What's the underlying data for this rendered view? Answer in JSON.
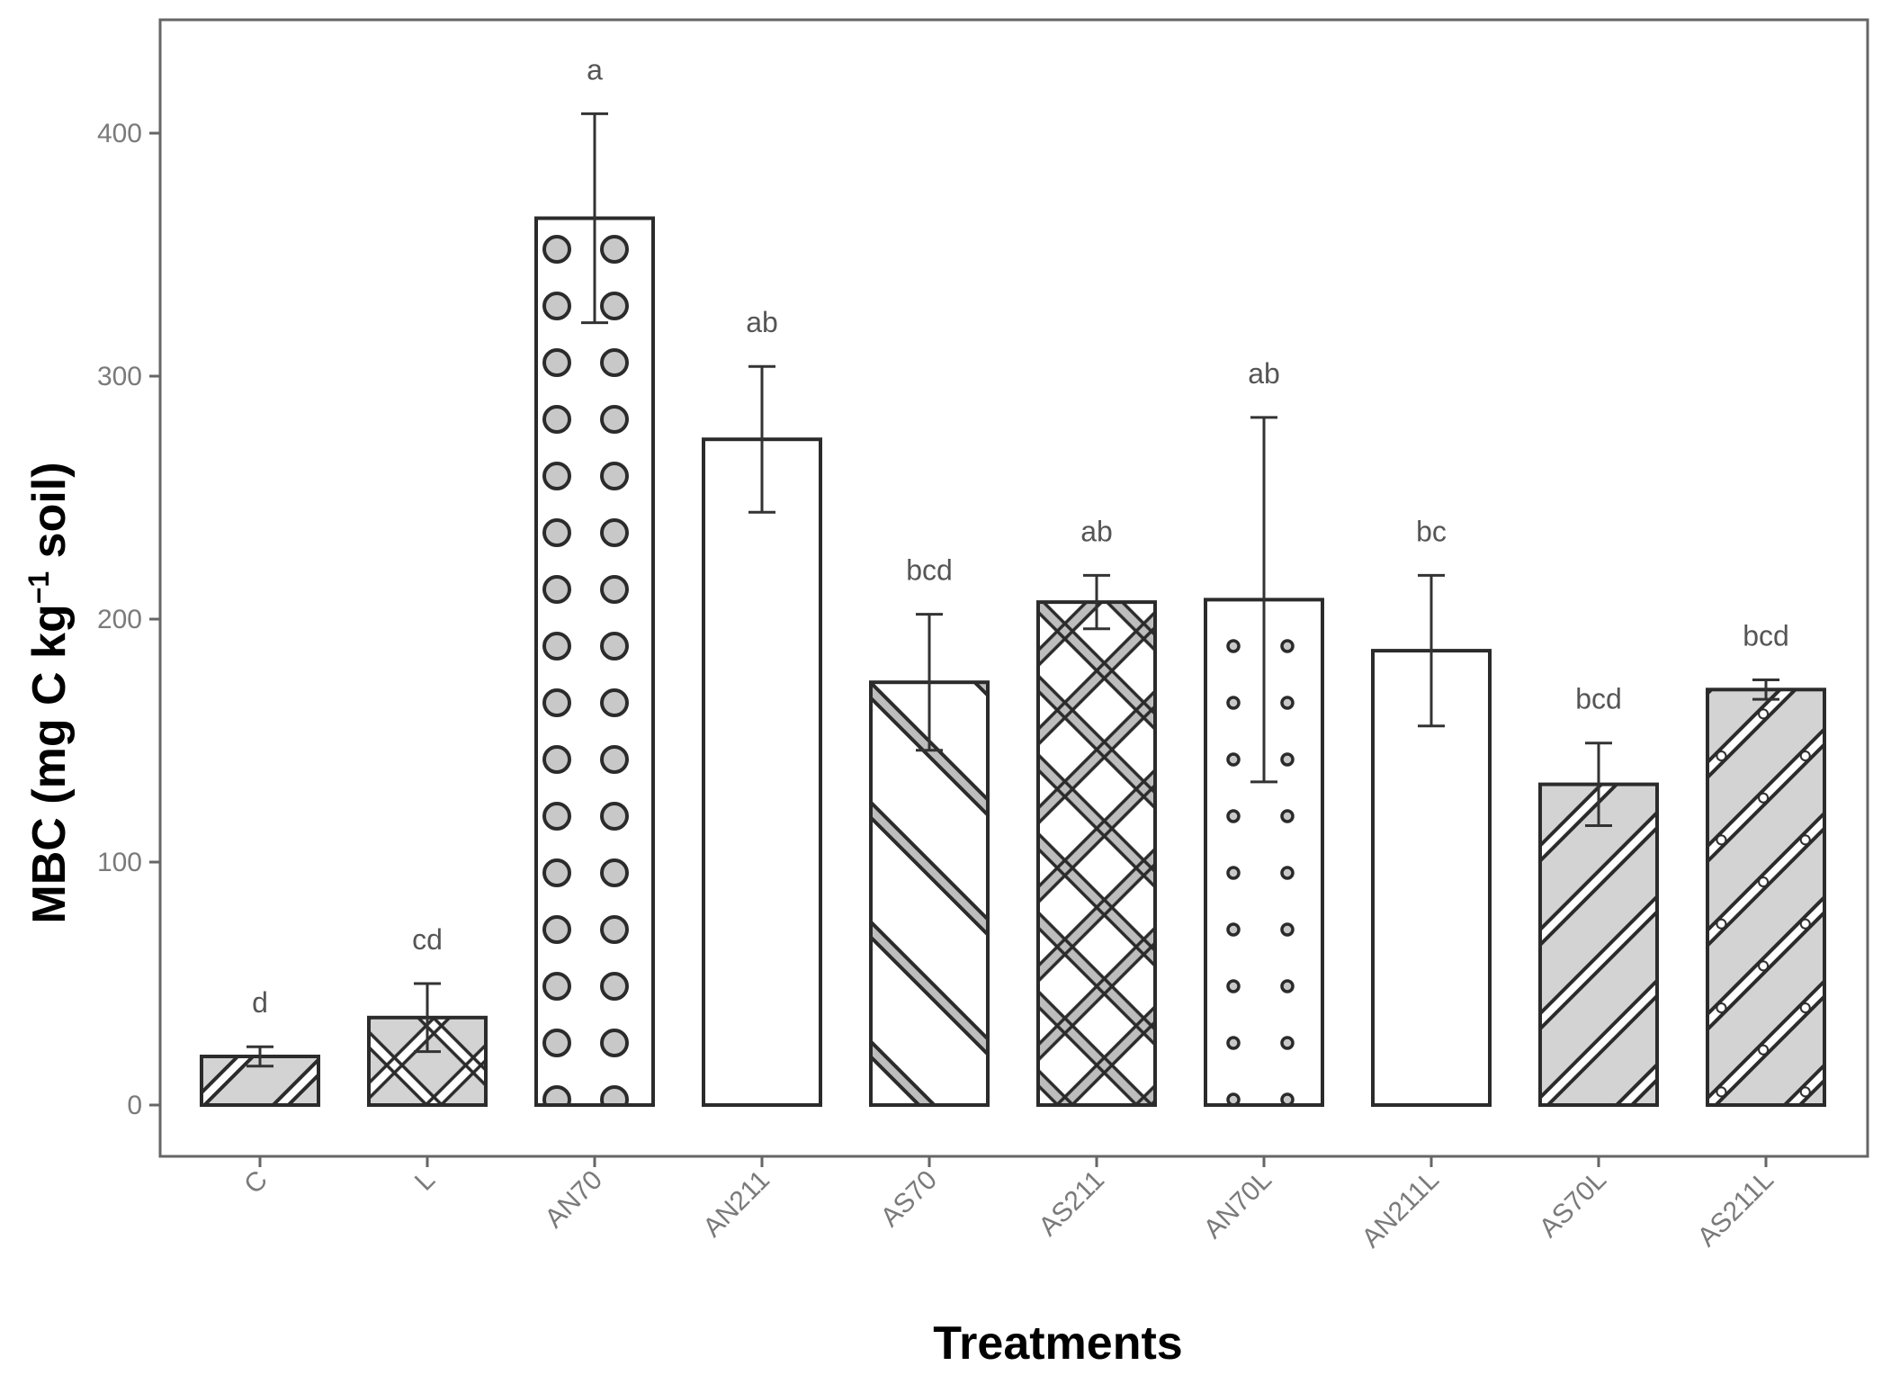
{
  "chart_data": {
    "type": "bar",
    "title": "",
    "xlabel": "Treatments",
    "ylabel_parts": {
      "main": "MBC (mg C kg",
      "sup": "−1",
      "tail": " soil)"
    },
    "ylim": [
      -20,
      445
    ],
    "yticks": [
      0,
      100,
      200,
      300,
      400
    ],
    "categories": [
      "C",
      "L",
      "AN70",
      "AN211",
      "AS70",
      "AS211",
      "AN70L",
      "AN211L",
      "AS70L",
      "AS211L"
    ],
    "values": [
      20,
      36,
      365,
      274,
      174,
      207,
      208,
      187,
      132,
      171
    ],
    "error": [
      4,
      14,
      43,
      30,
      28,
      11,
      75,
      31,
      17,
      4
    ],
    "significance": [
      "d",
      "cd",
      "a",
      "ab",
      "bcd",
      "ab",
      "ab",
      "bc",
      "bcd",
      "bcd"
    ],
    "patterns": [
      "stripe-grey",
      "crosshatch-grey",
      "circles-large",
      "none",
      "stripe-white",
      "crosshatch-white",
      "dots-small",
      "none",
      "stripe-grey",
      "stripe-grey-dots"
    ],
    "colors": {
      "white_fill": "#ffffff",
      "grey_fill": "#d3d3d3",
      "stroke": "#2b2b2b",
      "frame": "#666666",
      "tick_text": "#7a7a7a"
    },
    "grid": false
  }
}
